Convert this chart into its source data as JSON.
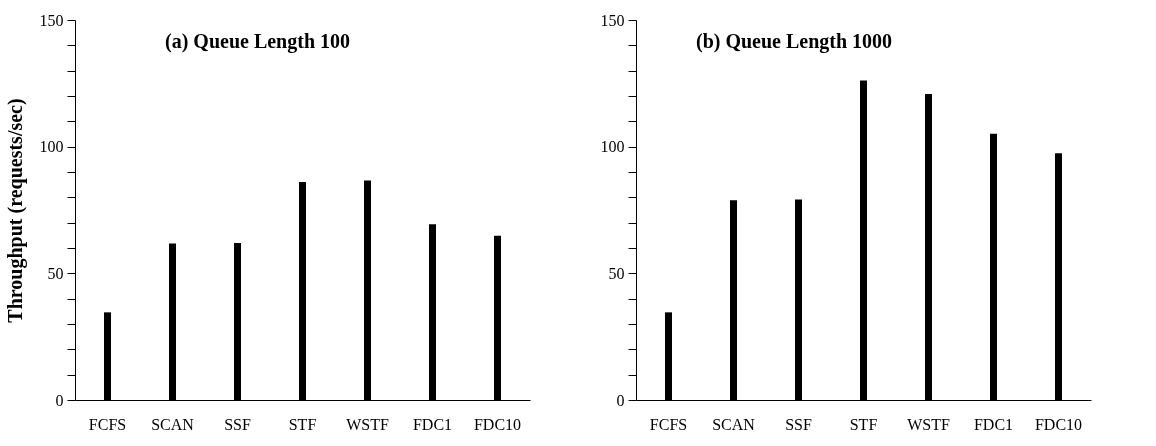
{
  "chart_data": [
    {
      "type": "bar",
      "title": "(a) Queue Length 100",
      "ylabel": "Throughput (requests/sec)",
      "categories": [
        "FCFS",
        "SCAN",
        "SSF",
        "STF",
        "WSTF",
        "FDC1",
        "FDC10"
      ],
      "values": [
        34.6,
        61.8,
        62,
        86.1,
        86.6,
        69.4,
        64.8
      ],
      "color": "#000000",
      "ylim": [
        0,
        150
      ],
      "yticks": [
        0,
        {
          "value": 10,
          "label": null
        },
        {
          "value": 20,
          "label": null
        },
        {
          "value": 30,
          "label": null
        },
        {
          "value": 40,
          "label": null
        },
        50,
        {
          "value": 60,
          "label": null
        },
        {
          "value": 70,
          "label": null
        },
        {
          "value": 80,
          "label": null
        },
        {
          "value": 90,
          "label": null
        },
        100,
        {
          "value": 110,
          "label": null
        },
        {
          "value": 120,
          "label": null
        },
        {
          "value": 130,
          "label": null
        },
        {
          "value": 140,
          "label": null
        },
        150
      ],
      "grid": false
    },
    {
      "type": "bar",
      "title": "(b) Queue Length 1000",
      "categories": [
        "FCFS",
        "SCAN",
        "SSF",
        "STF",
        "WSTF",
        "FDC1",
        "FDC10"
      ],
      "values": [
        34.6,
        78.8,
        79.1,
        126.1,
        120.8,
        105.1,
        97.4
      ],
      "color": "#000000",
      "ylim": [
        0,
        150
      ],
      "yticks": [
        0,
        {
          "value": 10,
          "label": null
        },
        {
          "value": 20,
          "label": null
        },
        {
          "value": 30,
          "label": null
        },
        {
          "value": 40,
          "label": null
        },
        50,
        {
          "value": 60,
          "label": null
        },
        {
          "value": 70,
          "label": null
        },
        {
          "value": 80,
          "label": null
        },
        {
          "value": 90,
          "label": null
        },
        100,
        {
          "value": 110,
          "label": null
        },
        {
          "value": 120,
          "label": null
        },
        {
          "value": 130,
          "label": null
        },
        {
          "value": 140,
          "label": null
        },
        150
      ],
      "grid": false
    }
  ]
}
